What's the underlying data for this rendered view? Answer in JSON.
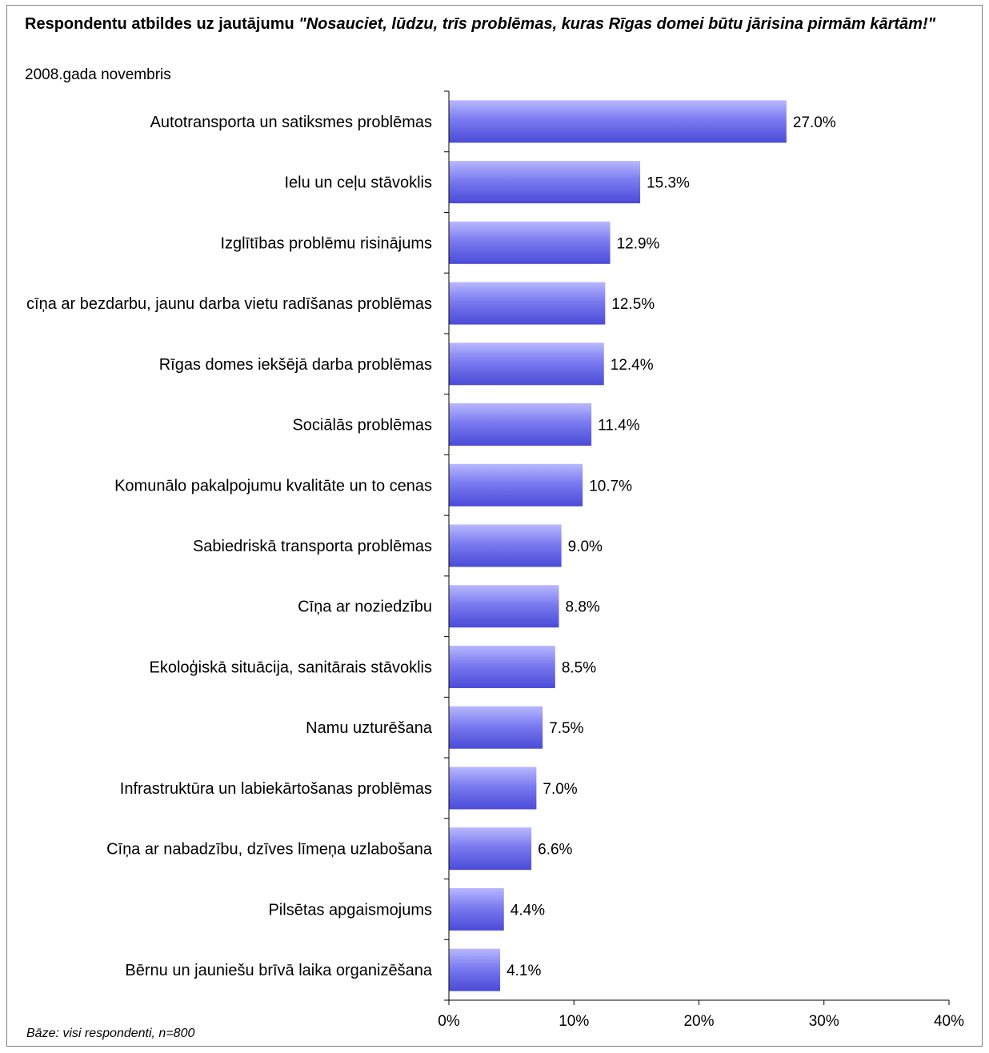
{
  "title_bold": "Respondentu atbildes uz jautājumu ",
  "title_italic": "\"Nosauciet, lūdzu, trīs problēmas, kuras Rīgas domei būtu jārisina pirmām kārtām!\"",
  "subtitle": "2008.gada novembris",
  "base_note": "Bāze: visi respondenti, n=800",
  "colors": {
    "bar_light": "#b8b8ff",
    "bar_mid": "#7b7bf0",
    "bar_dark": "#4a4ad8",
    "axis": "#000000"
  },
  "chart_data": {
    "type": "bar",
    "orientation": "horizontal",
    "categories": [
      "Autotransporta un satiksmes problēmas",
      "Ielu un ceļu stāvoklis",
      "Izglītības problēmu risinājums",
      "cīņa ar bezdarbu, jaunu darba vietu radīšanas problēmas",
      "Rīgas domes iekšējā darba problēmas",
      "Sociālās problēmas",
      "Komunālo pakalpojumu kvalitāte un to cenas",
      "Sabiedriskā transporta problēmas",
      "Cīņa ar noziedzību",
      "Ekoloģiskā situācija, sanitārais stāvoklis",
      "Namu uzturēšana",
      "Infrastruktūra un labiekārtošanas problēmas",
      "Cīņa ar nabadzību, dzīves līmeņa uzlabošana",
      "Pilsētas apgaismojums",
      "Bērnu un jauniešu brīvā laika organizēšana"
    ],
    "values": [
      27.0,
      15.3,
      12.9,
      12.5,
      12.4,
      11.4,
      10.7,
      9.0,
      8.8,
      8.5,
      7.5,
      7.0,
      6.6,
      4.4,
      4.1
    ],
    "value_labels": [
      "27.0%",
      "15.3%",
      "12.9%",
      "12.5%",
      "12.4%",
      "11.4%",
      "10.7%",
      "9.0%",
      "8.8%",
      "8.5%",
      "7.5%",
      "7.0%",
      "6.6%",
      "4.4%",
      "4.1%"
    ],
    "x_ticks": [
      0,
      10,
      20,
      30,
      40
    ],
    "x_tick_labels": [
      "0%",
      "10%",
      "20%",
      "30%",
      "40%"
    ],
    "xlim": [
      0,
      40
    ],
    "grid": false,
    "legend": "none"
  }
}
